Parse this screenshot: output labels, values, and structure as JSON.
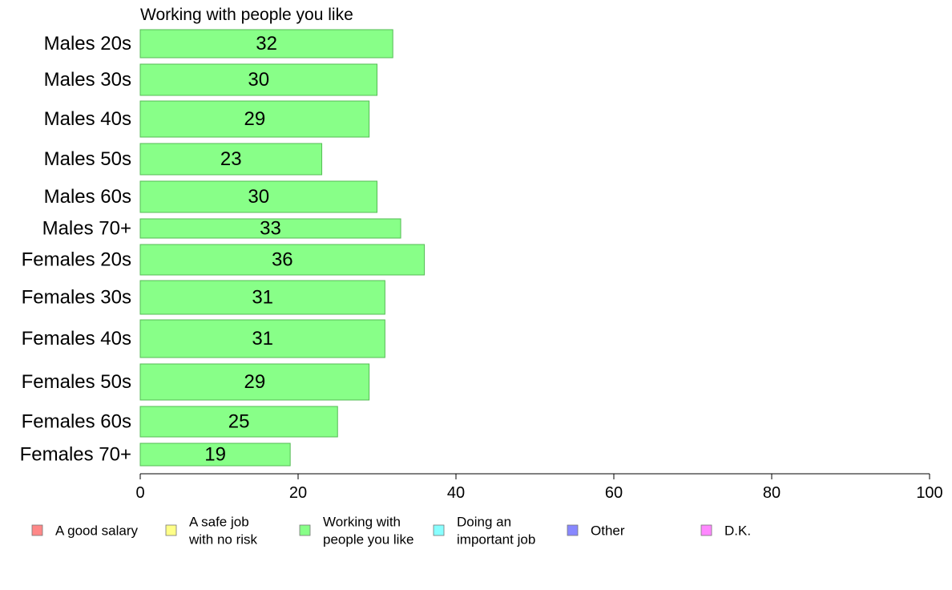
{
  "chart_data": {
    "type": "bar",
    "orientation": "horizontal",
    "title": "Working with people you like",
    "categories": [
      "Males 20s",
      "Males 30s",
      "Males 40s",
      "Males 50s",
      "Males 60s",
      "Males 70+",
      "Females 20s",
      "Females 30s",
      "Females 40s",
      "Females 50s",
      "Females 60s",
      "Females 70+"
    ],
    "values": [
      32,
      30,
      29,
      23,
      30,
      33,
      36,
      31,
      31,
      29,
      25,
      19
    ],
    "value_labels": [
      "32",
      "30",
      "29",
      "23",
      "30",
      "33",
      "36",
      "31",
      "31",
      "29",
      "25",
      "19"
    ],
    "xlim": [
      0,
      100
    ],
    "x_ticks": [
      0,
      20,
      40,
      60,
      80,
      100
    ],
    "x_tick_labels": [
      "0",
      "20",
      "40",
      "60",
      "80",
      "100"
    ],
    "bar_color": "#88ff88",
    "grid": false,
    "legend_position": "bottom",
    "legend": [
      {
        "lines": [
          "A good salary"
        ],
        "color": "#ff8888"
      },
      {
        "lines": [
          "A safe job",
          "with no risk"
        ],
        "color": "#ffff88"
      },
      {
        "lines": [
          "Working with",
          "people you like"
        ],
        "color": "#88ff88"
      },
      {
        "lines": [
          "Doing an",
          "important job"
        ],
        "color": "#88ffff"
      },
      {
        "lines": [
          "Other"
        ],
        "color": "#8888ff"
      },
      {
        "lines": [
          "D.K."
        ],
        "color": "#ff88ff"
      }
    ]
  }
}
